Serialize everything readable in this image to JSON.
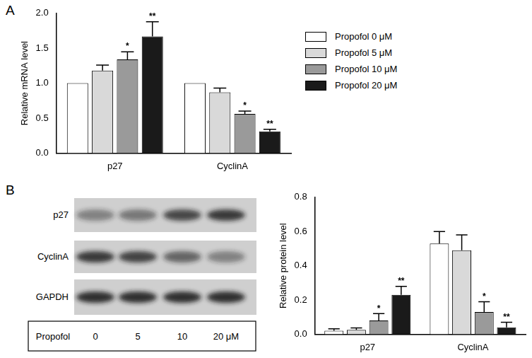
{
  "panel_labels": [
    "A",
    "B"
  ],
  "chart_data": [
    {
      "type": "bar",
      "categories": [
        "p27",
        "CyclinA"
      ],
      "ylabel": "Relative mRNA level",
      "ylim": [
        0,
        2
      ],
      "yticks": [
        {
          "value": 0,
          "label": "0.0"
        },
        0.5,
        {
          "value": 1,
          "label": "1.0"
        },
        1.5,
        {
          "value": 2,
          "label": "2.0"
        }
      ],
      "grid": false,
      "legend": "right",
      "series": [
        {
          "name": "Propofol 0 μM",
          "color": "#ffffff",
          "values": [
            1.0,
            1.0
          ],
          "errors": [
            0,
            0
          ],
          "annotations": [
            null,
            null
          ]
        },
        {
          "name": "Propofol 5 μM",
          "color": "#d9d9d9",
          "values": [
            1.18,
            0.87
          ],
          "errors": [
            0.08,
            0.06
          ],
          "annotations": [
            null,
            null
          ]
        },
        {
          "name": "Propofol 10 μM",
          "color": "#9a9a9a",
          "values": [
            1.34,
            0.56
          ],
          "errors": [
            0.11,
            0.04
          ],
          "annotations": [
            "*",
            "*"
          ]
        },
        {
          "name": "Propofol 20 μM",
          "color": "#1a1a1a",
          "values": [
            1.67,
            0.31
          ],
          "errors": [
            0.21,
            0.03
          ],
          "annotations": [
            "**",
            "**"
          ]
        }
      ]
    },
    {
      "type": "bar",
      "categories": [
        "p27",
        "CyclinA"
      ],
      "ylabel": "Relative protein level",
      "ylim": [
        0,
        0.8
      ],
      "yticks": [
        {
          "value": 0,
          "label": "0.0"
        },
        0.2,
        0.4,
        0.6,
        0.8
      ],
      "grid": false,
      "series": [
        {
          "color": "#ffffff",
          "values": [
            0.02,
            0.53
          ],
          "errors": [
            0.012,
            0.07
          ],
          "annotations": [
            null,
            null
          ]
        },
        {
          "color": "#d9d9d9",
          "values": [
            0.025,
            0.49
          ],
          "errors": [
            0.012,
            0.09
          ],
          "annotations": [
            null,
            null
          ]
        },
        {
          "color": "#9a9a9a",
          "values": [
            0.08,
            0.13
          ],
          "errors": [
            0.04,
            0.06
          ],
          "annotations": [
            "*",
            "*"
          ]
        },
        {
          "color": "#1a1a1a",
          "values": [
            0.23,
            0.04
          ],
          "errors": [
            0.05,
            0.03
          ],
          "annotations": [
            "**",
            "**"
          ]
        }
      ]
    }
  ],
  "blot": {
    "rows": [
      {
        "label": "p27",
        "intensity": [
          0.45,
          0.5,
          0.75,
          0.85
        ]
      },
      {
        "label": "CyclinA",
        "intensity": [
          0.85,
          0.8,
          0.6,
          0.45
        ]
      },
      {
        "label": "GAPDH",
        "intensity": [
          0.9,
          0.9,
          0.9,
          0.9
        ]
      }
    ],
    "footer_label": "Propofol",
    "lanes": [
      "0",
      "5",
      "10",
      "20 μM"
    ]
  }
}
